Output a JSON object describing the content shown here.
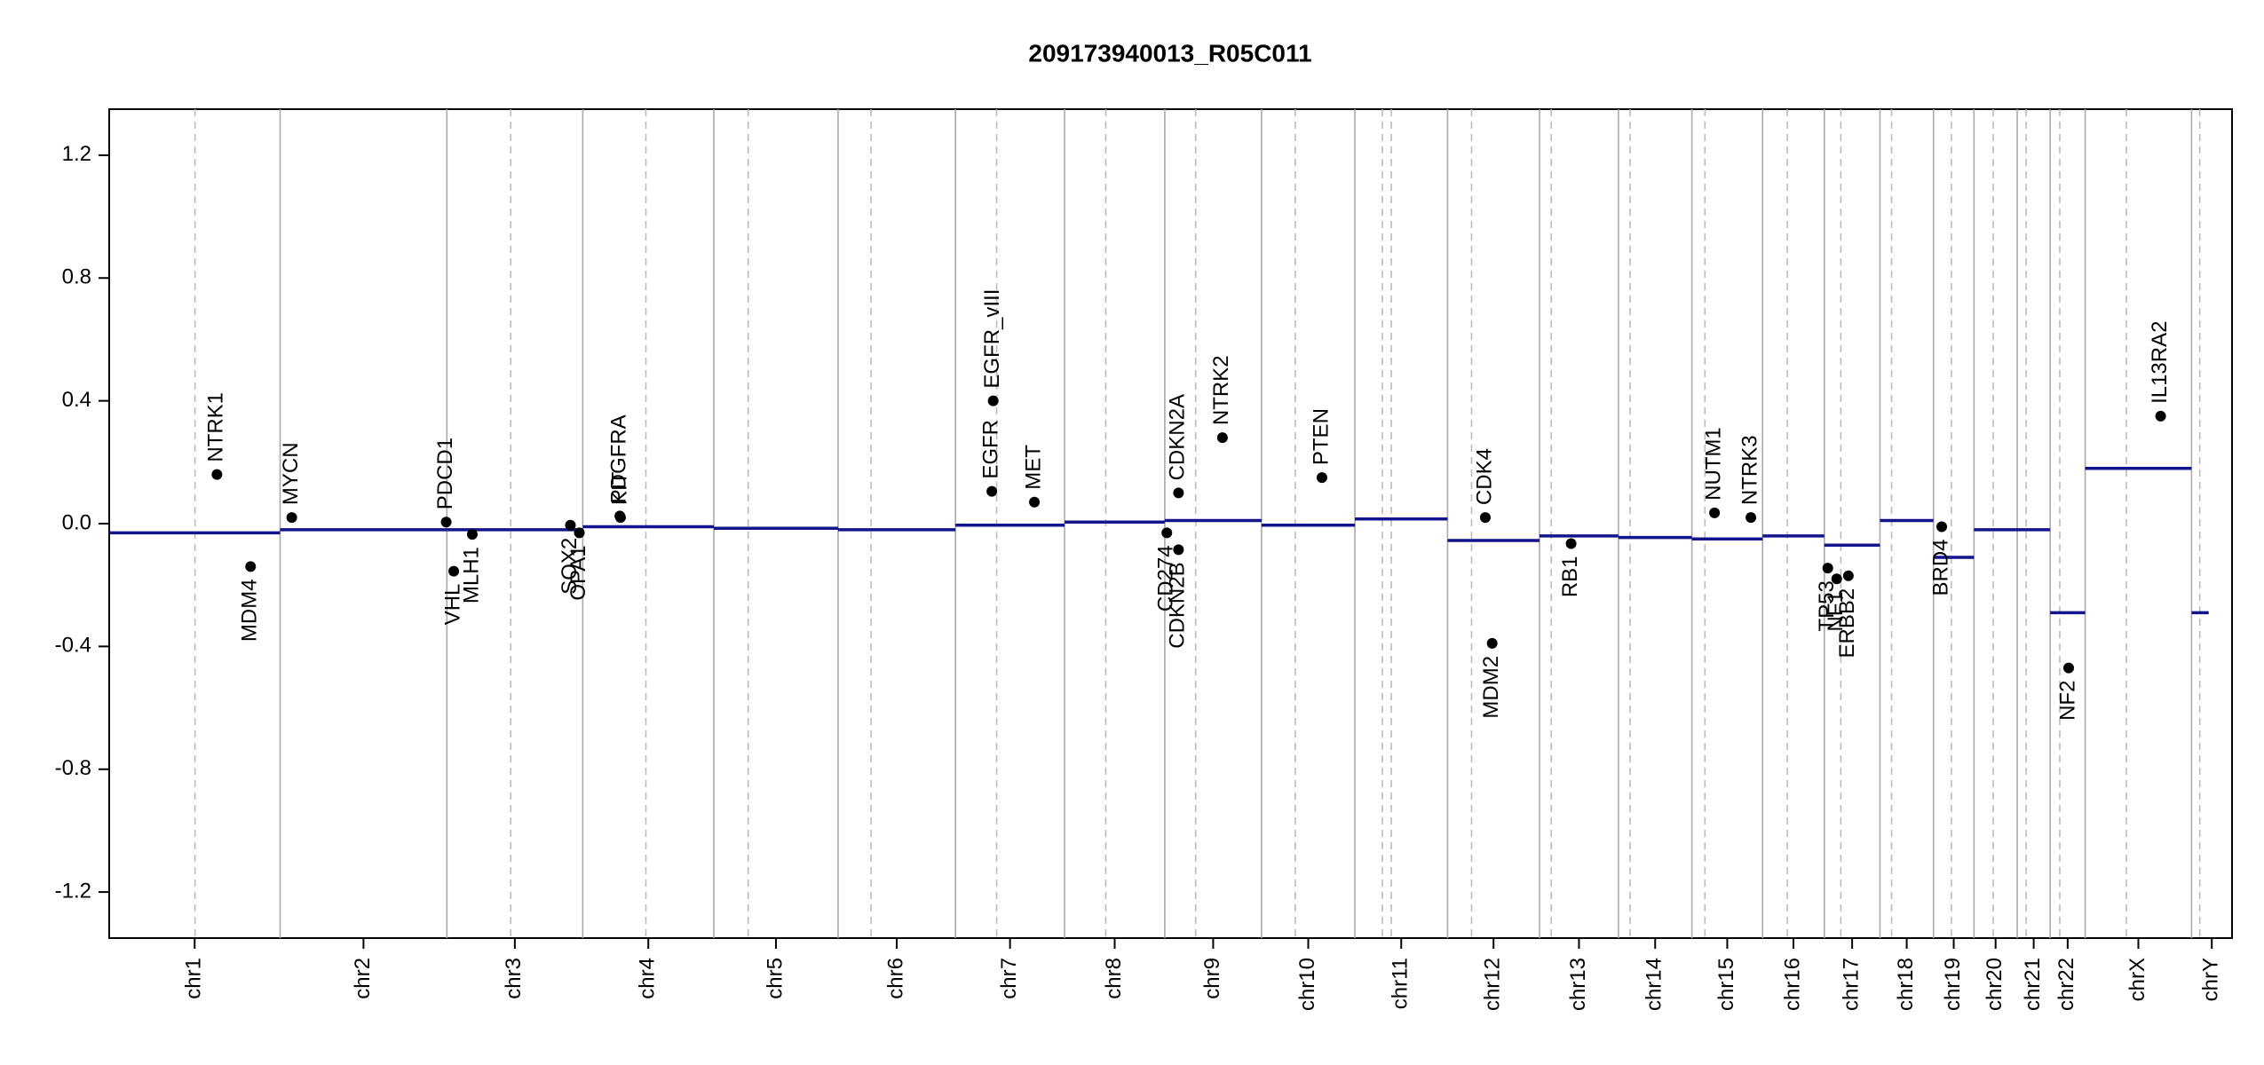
{
  "chart_data": {
    "type": "cnv",
    "title": "209173940013_R05C011",
    "ylim": [
      -1.35,
      1.35
    ],
    "yticks": [
      1.2,
      0.8,
      0.4,
      {
        "value": 0,
        "label": "0.0"
      },
      -0.4,
      -0.8,
      -1.2
    ],
    "xlim": [
      0,
      3093
    ],
    "categories": [
      "chr1",
      "chr2",
      "chr3",
      "chr4",
      "chr5",
      "chr6",
      "chr7",
      "chr8",
      "chr9",
      "chr10",
      "chr11",
      "chr12",
      "chr13",
      "chr14",
      "chr15",
      "chr16",
      "chr17",
      "chr18",
      "chr19",
      "chr20",
      "chr21",
      "chr22",
      "chrX",
      "chrY"
    ],
    "boundaries": [
      0,
      249,
      492,
      690,
      881,
      1062,
      1233,
      1392,
      1538,
      1679,
      1815,
      1950,
      2084,
      2199,
      2306,
      2409,
      2499,
      2580,
      2658,
      2717,
      2780,
      2828,
      2879,
      3034,
      3093
    ],
    "centromeres": [
      125,
      585,
      782,
      931,
      1110,
      1293,
      1452,
      1583,
      1728,
      1855,
      1868,
      1985,
      2101,
      2216,
      2325,
      2445,
      2523,
      2597,
      2684,
      2745,
      2793,
      2842,
      2939,
      3046
    ],
    "segment_color": "#14148c",
    "segments": [
      {
        "start": 0,
        "end": 249,
        "value": -0.03
      },
      {
        "start": 249,
        "end": 492,
        "value": -0.02
      },
      {
        "start": 492,
        "end": 690,
        "value": -0.02
      },
      {
        "start": 690,
        "end": 881,
        "value": -0.01
      },
      {
        "start": 881,
        "end": 1062,
        "value": -0.015
      },
      {
        "start": 1062,
        "end": 1233,
        "value": -0.02
      },
      {
        "start": 1233,
        "end": 1392,
        "value": -0.005
      },
      {
        "start": 1392,
        "end": 1538,
        "value": 0.005
      },
      {
        "start": 1538,
        "end": 1679,
        "value": 0.01
      },
      {
        "start": 1679,
        "end": 1815,
        "value": -0.005
      },
      {
        "start": 1815,
        "end": 1950,
        "value": 0.015
      },
      {
        "start": 1950,
        "end": 2084,
        "value": -0.055
      },
      {
        "start": 2084,
        "end": 2199,
        "value": -0.04
      },
      {
        "start": 2199,
        "end": 2306,
        "value": -0.045
      },
      {
        "start": 2306,
        "end": 2409,
        "value": -0.05
      },
      {
        "start": 2409,
        "end": 2499,
        "value": -0.04
      },
      {
        "start": 2499,
        "end": 2580,
        "value": -0.07
      },
      {
        "start": 2580,
        "end": 2658,
        "value": 0.01
      },
      {
        "start": 2658,
        "end": 2717,
        "value": -0.11
      },
      {
        "start": 2717,
        "end": 2780,
        "value": -0.02
      },
      {
        "start": 2780,
        "end": 2828,
        "value": -0.02
      },
      {
        "start": 2828,
        "end": 2879,
        "value": -0.29
      },
      {
        "start": 2879,
        "end": 3034,
        "value": 0.18
      },
      {
        "start": 3034,
        "end": 3059,
        "value": -0.29
      }
    ],
    "genes": [
      {
        "name": "NTRK1",
        "x": 157,
        "value": 0.16
      },
      {
        "name": "MDM4",
        "x": 206,
        "value": -0.14
      },
      {
        "name": "MYCN",
        "x": 266,
        "value": 0.02
      },
      {
        "name": "PDCD1",
        "x": 491,
        "value": 0.005
      },
      {
        "name": "VHL",
        "x": 502,
        "value": -0.155
      },
      {
        "name": "MLH1",
        "x": 529,
        "value": -0.035
      },
      {
        "name": "SOX2",
        "x": 672,
        "value": -0.005
      },
      {
        "name": "OPA1",
        "x": 685,
        "value": -0.03
      },
      {
        "name": "PDGFRA",
        "x": 744,
        "value": 0.025
      },
      {
        "name": "KIT",
        "x": 745,
        "value": 0.02
      },
      {
        "name": "EGFR",
        "x": 1286,
        "value": 0.105
      },
      {
        "name": "EGFR_vIII",
        "x": 1288,
        "value": 0.4
      },
      {
        "name": "MET",
        "x": 1348,
        "value": 0.07
      },
      {
        "name": "CDKN2A",
        "x": 1558,
        "value": 0.1
      },
      {
        "name": "CD274",
        "x": 1541,
        "value": -0.03
      },
      {
        "name": "CDKN2B",
        "x": 1558,
        "value": -0.085
      },
      {
        "name": "NTRK2",
        "x": 1622,
        "value": 0.28
      },
      {
        "name": "PTEN",
        "x": 1767,
        "value": 0.15
      },
      {
        "name": "CDK4",
        "x": 2005,
        "value": 0.02
      },
      {
        "name": "MDM2",
        "x": 2015,
        "value": -0.39
      },
      {
        "name": "RB1",
        "x": 2130,
        "value": -0.065
      },
      {
        "name": "NUTM1",
        "x": 2339,
        "value": 0.035
      },
      {
        "name": "NTRK3",
        "x": 2392,
        "value": 0.02
      },
      {
        "name": "TP53",
        "x": 2504,
        "value": -0.145
      },
      {
        "name": "NF1",
        "x": 2517,
        "value": -0.18
      },
      {
        "name": "ERBB2",
        "x": 2534,
        "value": -0.17
      },
      {
        "name": "BRD4",
        "x": 2670,
        "value": -0.01
      },
      {
        "name": "NF2",
        "x": 2855,
        "value": -0.47
      },
      {
        "name": "IL13RA2",
        "x": 2989,
        "value": 0.35
      }
    ]
  }
}
